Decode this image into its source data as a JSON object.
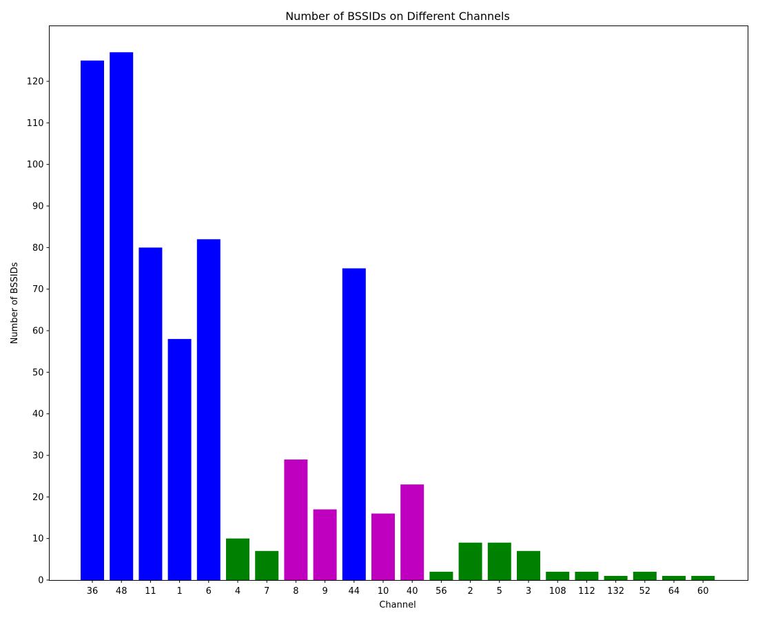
{
  "chart_data": {
    "type": "bar",
    "title": "Number of BSSIDs on Different Channels",
    "xlabel": "Channel",
    "ylabel": "Number of BSSIDs",
    "ylim": [
      0,
      133.35
    ],
    "yticks": [
      0,
      10,
      20,
      30,
      40,
      50,
      60,
      70,
      80,
      90,
      100,
      110,
      120
    ],
    "grid": false,
    "categories": [
      "36",
      "48",
      "11",
      "1",
      "6",
      "4",
      "7",
      "8",
      "9",
      "44",
      "10",
      "40",
      "56",
      "2",
      "5",
      "3",
      "108",
      "112",
      "132",
      "52",
      "64",
      "60"
    ],
    "values": [
      125,
      127,
      80,
      58,
      82,
      10,
      7,
      29,
      17,
      75,
      16,
      23,
      2,
      9,
      9,
      7,
      2,
      2,
      1,
      2,
      1,
      1
    ],
    "bar_colors": [
      "#0000ff",
      "#0000ff",
      "#0000ff",
      "#0000ff",
      "#0000ff",
      "#008000",
      "#008000",
      "#bf00bf",
      "#bf00bf",
      "#0000ff",
      "#bf00bf",
      "#bf00bf",
      "#008000",
      "#008000",
      "#008000",
      "#008000",
      "#008000",
      "#008000",
      "#008000",
      "#008000",
      "#008000",
      "#008000"
    ]
  }
}
